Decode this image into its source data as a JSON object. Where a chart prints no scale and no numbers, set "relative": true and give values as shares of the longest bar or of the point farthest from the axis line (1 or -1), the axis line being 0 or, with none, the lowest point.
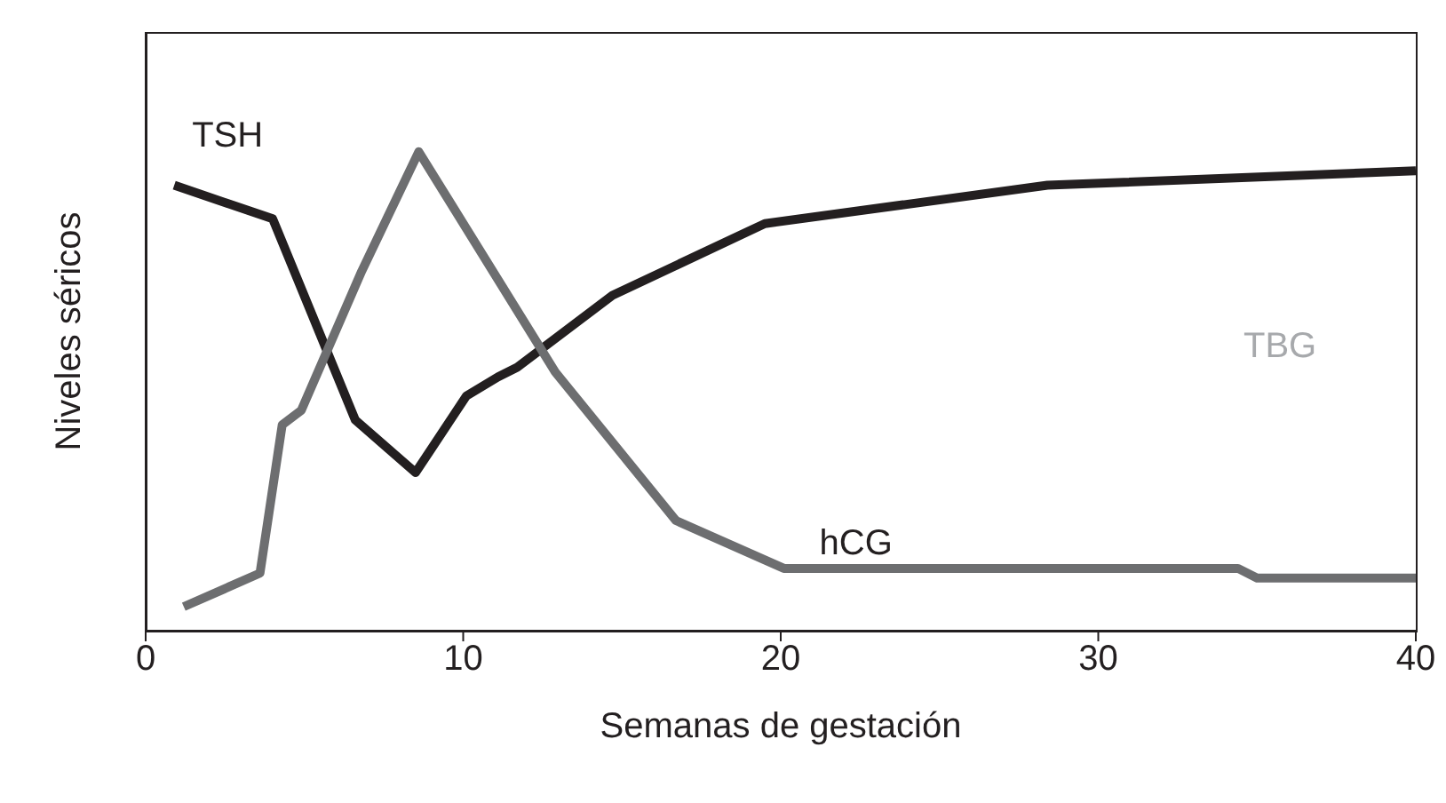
{
  "chart_data": {
    "type": "line",
    "relative": true,
    "xlabel": "Semanas de gestación",
    "ylabel": "Niveles séricos",
    "xlim": [
      0,
      40
    ],
    "xticks": [
      0,
      10,
      20,
      30,
      40
    ],
    "marker": "none",
    "line_style": "solid",
    "annotations": [
      "TBG"
    ],
    "series": [
      {
        "name": "TSH",
        "color": "#231f20",
        "x": [
          0.9,
          4.0,
          6.6,
          8.5,
          10.1,
          11.1,
          11.7,
          14.7,
          19.5,
          28.4,
          40
        ],
        "values": [
          0.93,
          0.86,
          0.44,
          0.33,
          0.49,
          0.53,
          0.55,
          0.7,
          0.85,
          0.93,
          0.96
        ]
      },
      {
        "name": "hCG",
        "color": "#6d6e70",
        "x": [
          1.2,
          3.6,
          4.3,
          4.9,
          6.8,
          8.6,
          12.9,
          16.7,
          20.1,
          34.4,
          35.0,
          40
        ],
        "values": [
          0.05,
          0.12,
          0.43,
          0.46,
          0.75,
          1.0,
          0.54,
          0.23,
          0.13,
          0.13,
          0.11,
          0.11
        ]
      }
    ]
  }
}
